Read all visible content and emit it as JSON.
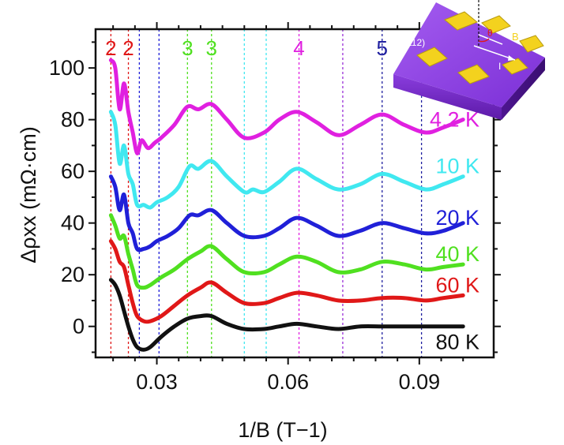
{
  "chart_data": {
    "type": "line",
    "xlabel": "1/B (T−1)",
    "ylabel": "Δρxx (mΩ·cm)",
    "xlim": [
      0.016,
      0.107
    ],
    "ylim": [
      -12,
      115
    ],
    "x_ticks": [
      0.03,
      0.06,
      0.09
    ],
    "x_tick_labels": [
      "0.03",
      "0.06",
      "0.09"
    ],
    "y_ticks": [
      0,
      20,
      40,
      60,
      80,
      100
    ],
    "y_tick_labels": [
      "0",
      "20",
      "40",
      "60",
      "80",
      "100"
    ],
    "grid": false,
    "series": [
      {
        "name": "4.2 K",
        "color": "#e020e0",
        "x": [
          0.0195,
          0.0205,
          0.0215,
          0.0225,
          0.0235,
          0.0245,
          0.0255,
          0.0265,
          0.028,
          0.0295,
          0.031,
          0.034,
          0.037,
          0.0395,
          0.0425,
          0.046,
          0.05,
          0.0545,
          0.058,
          0.062,
          0.0665,
          0.0715,
          0.0765,
          0.0815,
          0.0865,
          0.0915,
          0.0955,
          0.1
        ],
        "y": [
          103,
          100,
          84,
          94,
          83,
          75,
          67,
          72,
          69,
          71,
          73,
          78,
          85,
          84,
          86,
          80,
          73,
          75,
          80,
          83,
          79,
          74,
          78,
          82,
          78,
          75,
          77,
          80
        ]
      },
      {
        "name": "10 K",
        "color": "#40e8f0",
        "x": [
          0.0195,
          0.0205,
          0.0215,
          0.0225,
          0.0235,
          0.0245,
          0.0255,
          0.027,
          0.0285,
          0.03,
          0.0325,
          0.035,
          0.0375,
          0.0395,
          0.0425,
          0.046,
          0.05,
          0.052,
          0.0545,
          0.058,
          0.062,
          0.0665,
          0.0715,
          0.0765,
          0.0815,
          0.0865,
          0.0915,
          0.0955,
          0.1
        ],
        "y": [
          83,
          78,
          63,
          70,
          59,
          55,
          47,
          47,
          46,
          48,
          50,
          54,
          62,
          61,
          64,
          58,
          52,
          53,
          52,
          56,
          61,
          57,
          53,
          55,
          59,
          56,
          53,
          55,
          58
        ]
      },
      {
        "name": "20 K",
        "color": "#2020d8",
        "x": [
          0.0195,
          0.0205,
          0.0215,
          0.0225,
          0.0235,
          0.0245,
          0.0255,
          0.027,
          0.0285,
          0.03,
          0.0325,
          0.035,
          0.0375,
          0.0395,
          0.0425,
          0.046,
          0.05,
          0.0545,
          0.058,
          0.062,
          0.0665,
          0.0715,
          0.0765,
          0.0815,
          0.0865,
          0.0915,
          0.0955,
          0.1
        ],
        "y": [
          58,
          54,
          45,
          51,
          40,
          36,
          30,
          30,
          31,
          33,
          35,
          38,
          43,
          43,
          45,
          40,
          35,
          35,
          38,
          42,
          39,
          35,
          37,
          40,
          38,
          36,
          37,
          40
        ]
      },
      {
        "name": "40 K",
        "color": "#50e020",
        "x": [
          0.0195,
          0.0205,
          0.0215,
          0.0225,
          0.0235,
          0.0245,
          0.0255,
          0.027,
          0.0285,
          0.031,
          0.034,
          0.037,
          0.04,
          0.0425,
          0.046,
          0.05,
          0.0545,
          0.058,
          0.062,
          0.0665,
          0.0715,
          0.0765,
          0.0815,
          0.0865,
          0.0915,
          0.0955,
          0.1
        ],
        "y": [
          43,
          39,
          34,
          35,
          28,
          22,
          16,
          15,
          16,
          19,
          22,
          26,
          29,
          31,
          26,
          21,
          21,
          24,
          27,
          25,
          21,
          22,
          25,
          24,
          22,
          23,
          24
        ]
      },
      {
        "name": "60 K",
        "color": "#e01818",
        "x": [
          0.0195,
          0.0205,
          0.0215,
          0.0225,
          0.0235,
          0.0245,
          0.0255,
          0.027,
          0.0285,
          0.031,
          0.034,
          0.037,
          0.04,
          0.0425,
          0.046,
          0.05,
          0.0545,
          0.058,
          0.062,
          0.0665,
          0.0715,
          0.0765,
          0.0815,
          0.0865,
          0.0915,
          0.0955,
          0.1
        ],
        "y": [
          33,
          30,
          25,
          23,
          16,
          9,
          4,
          2,
          2,
          4,
          8,
          12,
          15,
          17,
          13,
          9,
          9,
          11,
          13,
          12,
          10,
          10,
          11,
          11,
          10,
          11,
          12
        ]
      },
      {
        "name": "80 K",
        "color": "#111111",
        "x": [
          0.0195,
          0.0205,
          0.0215,
          0.0225,
          0.0235,
          0.0245,
          0.0255,
          0.027,
          0.0285,
          0.031,
          0.034,
          0.037,
          0.04,
          0.0425,
          0.046,
          0.05,
          0.0545,
          0.058,
          0.062,
          0.0665,
          0.0715,
          0.0765,
          0.0815,
          0.0865,
          0.0915,
          0.0955,
          0.1
        ],
        "y": [
          18,
          16,
          12,
          6,
          0,
          -5,
          -8,
          -9,
          -8,
          -4,
          0,
          3,
          4,
          4,
          1,
          -1,
          -1,
          0,
          1,
          0,
          -1,
          0,
          0,
          0,
          0,
          0,
          0
        ]
      }
    ],
    "vertical_lines": [
      {
        "x": 0.0195,
        "color": "#e01818"
      },
      {
        "x": 0.0235,
        "color": "#e01818"
      },
      {
        "x": 0.026,
        "color": "#2020d8"
      },
      {
        "x": 0.0305,
        "color": "#2020d8"
      },
      {
        "x": 0.037,
        "color": "#50e020"
      },
      {
        "x": 0.0425,
        "color": "#50e020"
      },
      {
        "x": 0.05,
        "color": "#40e8f0"
      },
      {
        "x": 0.055,
        "color": "#40e8f0"
      },
      {
        "x": 0.0625,
        "color": "#e020e0"
      },
      {
        "x": 0.0725,
        "color": "#9a30d8"
      },
      {
        "x": 0.0815,
        "color": "#2020a0"
      },
      {
        "x": 0.0905,
        "color": "#2020a0"
      }
    ],
    "annotations": [
      {
        "text": "2",
        "x": 0.0195,
        "color": "#e01818"
      },
      {
        "text": "2",
        "x": 0.0235,
        "color": "#e01818"
      },
      {
        "text": "3",
        "x": 0.037,
        "color": "#50e020"
      },
      {
        "text": "3",
        "x": 0.0425,
        "color": "#50e020"
      },
      {
        "text": "4",
        "x": 0.0625,
        "color": "#e020e0"
      },
      {
        "text": "5",
        "x": 0.0815,
        "color": "#2020a0"
      }
    ],
    "series_label_y": [
      80,
      62,
      42,
      28,
      16,
      -6
    ],
    "inset": {
      "face_label": "(112)",
      "field_label": "B",
      "angle_label": "θ",
      "current_label": "I"
    }
  }
}
